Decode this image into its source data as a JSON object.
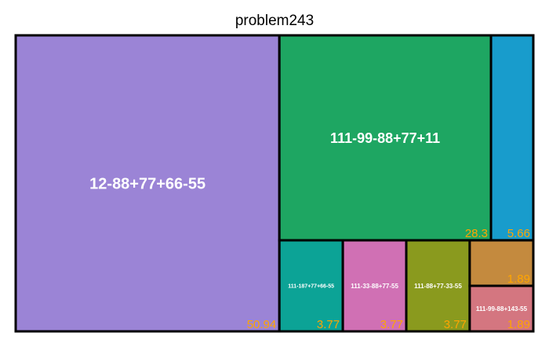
{
  "chart_data": {
    "type": "treemap",
    "title": "problem243",
    "items": [
      {
        "name": "12-88+77+66-55",
        "value": 50.94,
        "color": "#9b84d6"
      },
      {
        "name": "111-99-88+77+11",
        "value": 28.3,
        "color": "#1ea662"
      },
      {
        "name": "",
        "value": 5.66,
        "color": "#189ccc"
      },
      {
        "name": "111-187+77+66-55",
        "value": 3.77,
        "color": "#0ca396"
      },
      {
        "name": "111-33-88+77-55",
        "value": 3.77,
        "color": "#d070b4"
      },
      {
        "name": "111-88+77-33-55",
        "value": 3.77,
        "color": "#8a9a1e"
      },
      {
        "name": "",
        "value": 1.89,
        "color": "#c48a3e"
      },
      {
        "name": "111-99-88+143-55",
        "value": 1.89,
        "color": "#d47680"
      }
    ],
    "colors": {
      "border": "#000000",
      "label": "#ffffff",
      "value": "#ffa500"
    }
  }
}
